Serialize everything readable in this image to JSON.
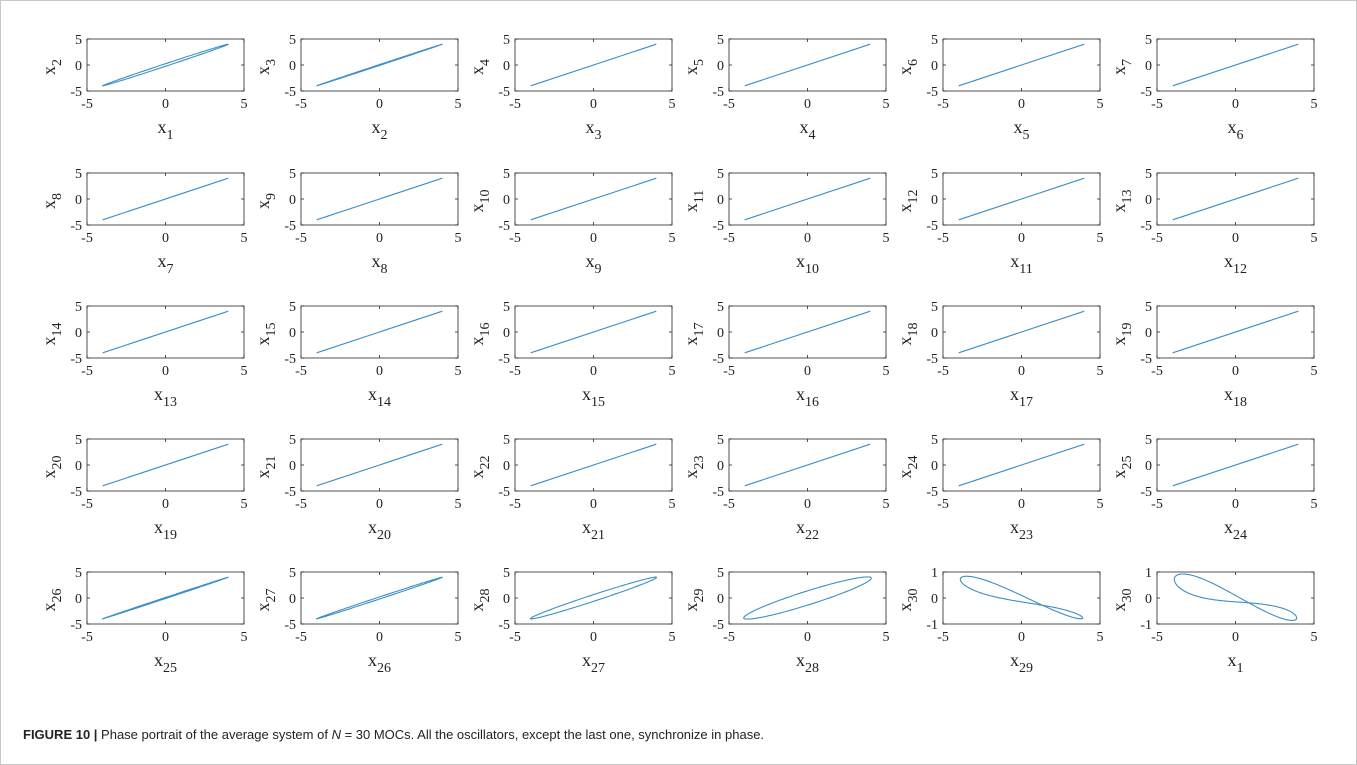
{
  "caption": {
    "label": "FIGURE 10 |",
    "text_before_n": " Phase portrait of the average system of ",
    "n_symbol": "N",
    "text_after_n": " = 30 MOCs. All the oscillators, except the last one, synchronize in phase."
  },
  "chart_data": {
    "type": "line",
    "layout": "grid of 30 phase-portrait subplots, 5 rows x 6 columns",
    "line_color": "#3d8fc4",
    "grid": false,
    "panels": [
      {
        "xlabel": "x_1",
        "ylabel": "x_2",
        "xlim": [
          -5,
          5
        ],
        "ylim": [
          -5,
          5
        ],
        "xticks": [
          "-5",
          "0",
          "5"
        ],
        "yticks": [
          "5",
          "0",
          "-5"
        ],
        "shape": "narrow_loop",
        "x_range": [
          -4,
          4
        ],
        "y_range": [
          -4,
          4
        ],
        "loop_width": 0.25
      },
      {
        "xlabel": "x_2",
        "ylabel": "x_3",
        "xlim": [
          -5,
          5
        ],
        "ylim": [
          -5,
          5
        ],
        "xticks": [
          "-5",
          "0",
          "5"
        ],
        "yticks": [
          "5",
          "0",
          "-5"
        ],
        "shape": "narrow_loop",
        "x_range": [
          -4,
          4
        ],
        "y_range": [
          -4,
          4
        ],
        "loop_width": 0.08
      },
      {
        "xlabel": "x_3",
        "ylabel": "x_4",
        "xlim": [
          -5,
          5
        ],
        "ylim": [
          -5,
          5
        ],
        "xticks": [
          "-5",
          "0",
          "5"
        ],
        "yticks": [
          "5",
          "0",
          "-5"
        ],
        "shape": "diagonal_line",
        "x_range": [
          -4,
          4
        ],
        "y_range": [
          -4,
          4
        ]
      },
      {
        "xlabel": "x_4",
        "ylabel": "x_5",
        "xlim": [
          -5,
          5
        ],
        "ylim": [
          -5,
          5
        ],
        "xticks": [
          "-5",
          "0",
          "5"
        ],
        "yticks": [
          "5",
          "0",
          "-5"
        ],
        "shape": "diagonal_line",
        "x_range": [
          -4,
          4
        ],
        "y_range": [
          -4,
          4
        ]
      },
      {
        "xlabel": "x_5",
        "ylabel": "x_6",
        "xlim": [
          -5,
          5
        ],
        "ylim": [
          -5,
          5
        ],
        "xticks": [
          "-5",
          "0",
          "5"
        ],
        "yticks": [
          "5",
          "0",
          "-5"
        ],
        "shape": "diagonal_line",
        "x_range": [
          -4,
          4
        ],
        "y_range": [
          -4,
          4
        ]
      },
      {
        "xlabel": "x_6",
        "ylabel": "x_7",
        "xlim": [
          -5,
          5
        ],
        "ylim": [
          -5,
          5
        ],
        "xticks": [
          "-5",
          "0",
          "5"
        ],
        "yticks": [
          "5",
          "0",
          "-5"
        ],
        "shape": "diagonal_line",
        "x_range": [
          -4,
          4
        ],
        "y_range": [
          -4,
          4
        ]
      },
      {
        "xlabel": "x_7",
        "ylabel": "x_8",
        "xlim": [
          -5,
          5
        ],
        "ylim": [
          -5,
          5
        ],
        "xticks": [
          "-5",
          "0",
          "5"
        ],
        "yticks": [
          "5",
          "0",
          "-5"
        ],
        "shape": "diagonal_line",
        "x_range": [
          -4,
          4
        ],
        "y_range": [
          -4,
          4
        ]
      },
      {
        "xlabel": "x_8",
        "ylabel": "x_9",
        "xlim": [
          -5,
          5
        ],
        "ylim": [
          -5,
          5
        ],
        "xticks": [
          "-5",
          "0",
          "5"
        ],
        "yticks": [
          "5",
          "0",
          "-5"
        ],
        "shape": "diagonal_line",
        "x_range": [
          -4,
          4
        ],
        "y_range": [
          -4,
          4
        ]
      },
      {
        "xlabel": "x_9",
        "ylabel": "x_10",
        "xlim": [
          -5,
          5
        ],
        "ylim": [
          -5,
          5
        ],
        "xticks": [
          "-5",
          "0",
          "5"
        ],
        "yticks": [
          "5",
          "0",
          "-5"
        ],
        "shape": "diagonal_line",
        "x_range": [
          -4,
          4
        ],
        "y_range": [
          -4,
          4
        ]
      },
      {
        "xlabel": "x_10",
        "ylabel": "x_11",
        "xlim": [
          -5,
          5
        ],
        "ylim": [
          -5,
          5
        ],
        "xticks": [
          "-5",
          "0",
          "5"
        ],
        "yticks": [
          "5",
          "0",
          "-5"
        ],
        "shape": "diagonal_line",
        "x_range": [
          -4,
          4
        ],
        "y_range": [
          -4,
          4
        ]
      },
      {
        "xlabel": "x_11",
        "ylabel": "x_12",
        "xlim": [
          -5,
          5
        ],
        "ylim": [
          -5,
          5
        ],
        "xticks": [
          "-5",
          "0",
          "5"
        ],
        "yticks": [
          "5",
          "0",
          "-5"
        ],
        "shape": "diagonal_line",
        "x_range": [
          -4,
          4
        ],
        "y_range": [
          -4,
          4
        ]
      },
      {
        "xlabel": "x_12",
        "ylabel": "x_13",
        "xlim": [
          -5,
          5
        ],
        "ylim": [
          -5,
          5
        ],
        "xticks": [
          "-5",
          "0",
          "5"
        ],
        "yticks": [
          "5",
          "0",
          "-5"
        ],
        "shape": "diagonal_line",
        "x_range": [
          -4,
          4
        ],
        "y_range": [
          -4,
          4
        ]
      },
      {
        "xlabel": "x_13",
        "ylabel": "x_14",
        "xlim": [
          -5,
          5
        ],
        "ylim": [
          -5,
          5
        ],
        "xticks": [
          "-5",
          "0",
          "5"
        ],
        "yticks": [
          "5",
          "0",
          "-5"
        ],
        "shape": "diagonal_line",
        "x_range": [
          -4,
          4
        ],
        "y_range": [
          -4,
          4
        ]
      },
      {
        "xlabel": "x_14",
        "ylabel": "x_15",
        "xlim": [
          -5,
          5
        ],
        "ylim": [
          -5,
          5
        ],
        "xticks": [
          "-5",
          "0",
          "5"
        ],
        "yticks": [
          "5",
          "0",
          "-5"
        ],
        "shape": "diagonal_line",
        "x_range": [
          -4,
          4
        ],
        "y_range": [
          -4,
          4
        ]
      },
      {
        "xlabel": "x_15",
        "ylabel": "x_16",
        "xlim": [
          -5,
          5
        ],
        "ylim": [
          -5,
          5
        ],
        "xticks": [
          "-5",
          "0",
          "5"
        ],
        "yticks": [
          "5",
          "0",
          "-5"
        ],
        "shape": "diagonal_line",
        "x_range": [
          -4,
          4
        ],
        "y_range": [
          -4,
          4
        ]
      },
      {
        "xlabel": "x_16",
        "ylabel": "x_17",
        "xlim": [
          -5,
          5
        ],
        "ylim": [
          -5,
          5
        ],
        "xticks": [
          "-5",
          "0",
          "5"
        ],
        "yticks": [
          "5",
          "0",
          "-5"
        ],
        "shape": "diagonal_line",
        "x_range": [
          -4,
          4
        ],
        "y_range": [
          -4,
          4
        ]
      },
      {
        "xlabel": "x_17",
        "ylabel": "x_18",
        "xlim": [
          -5,
          5
        ],
        "ylim": [
          -5,
          5
        ],
        "xticks": [
          "-5",
          "0",
          "5"
        ],
        "yticks": [
          "5",
          "0",
          "-5"
        ],
        "shape": "diagonal_line",
        "x_range": [
          -4,
          4
        ],
        "y_range": [
          -4,
          4
        ]
      },
      {
        "xlabel": "x_18",
        "ylabel": "x_19",
        "xlim": [
          -5,
          5
        ],
        "ylim": [
          -5,
          5
        ],
        "xticks": [
          "-5",
          "0",
          "5"
        ],
        "yticks": [
          "5",
          "0",
          "-5"
        ],
        "shape": "diagonal_line",
        "x_range": [
          -4,
          4
        ],
        "y_range": [
          -4,
          4
        ]
      },
      {
        "xlabel": "x_19",
        "ylabel": "x_20",
        "xlim": [
          -5,
          5
        ],
        "ylim": [
          -5,
          5
        ],
        "xticks": [
          "-5",
          "0",
          "5"
        ],
        "yticks": [
          "5",
          "0",
          "-5"
        ],
        "shape": "diagonal_line",
        "x_range": [
          -4,
          4
        ],
        "y_range": [
          -4,
          4
        ]
      },
      {
        "xlabel": "x_20",
        "ylabel": "x_21",
        "xlim": [
          -5,
          5
        ],
        "ylim": [
          -5,
          5
        ],
        "xticks": [
          "-5",
          "0",
          "5"
        ],
        "yticks": [
          "5",
          "0",
          "-5"
        ],
        "shape": "diagonal_line",
        "x_range": [
          -4,
          4
        ],
        "y_range": [
          -4,
          4
        ]
      },
      {
        "xlabel": "x_21",
        "ylabel": "x_22",
        "xlim": [
          -5,
          5
        ],
        "ylim": [
          -5,
          5
        ],
        "xticks": [
          "-5",
          "0",
          "5"
        ],
        "yticks": [
          "5",
          "0",
          "-5"
        ],
        "shape": "diagonal_line",
        "x_range": [
          -4,
          4
        ],
        "y_range": [
          -4,
          4
        ]
      },
      {
        "xlabel": "x_22",
        "ylabel": "x_23",
        "xlim": [
          -5,
          5
        ],
        "ylim": [
          -5,
          5
        ],
        "xticks": [
          "-5",
          "0",
          "5"
        ],
        "yticks": [
          "5",
          "0",
          "-5"
        ],
        "shape": "diagonal_line",
        "x_range": [
          -4,
          4
        ],
        "y_range": [
          -4,
          4
        ]
      },
      {
        "xlabel": "x_23",
        "ylabel": "x_24",
        "xlim": [
          -5,
          5
        ],
        "ylim": [
          -5,
          5
        ],
        "xticks": [
          "-5",
          "0",
          "5"
        ],
        "yticks": [
          "5",
          "0",
          "-5"
        ],
        "shape": "diagonal_line",
        "x_range": [
          -4,
          4
        ],
        "y_range": [
          -4,
          4
        ]
      },
      {
        "xlabel": "x_24",
        "ylabel": "x_25",
        "xlim": [
          -5,
          5
        ],
        "ylim": [
          -5,
          5
        ],
        "xticks": [
          "-5",
          "0",
          "5"
        ],
        "yticks": [
          "5",
          "0",
          "-5"
        ],
        "shape": "diagonal_line",
        "x_range": [
          -4,
          4
        ],
        "y_range": [
          -4,
          4
        ]
      },
      {
        "xlabel": "x_25",
        "ylabel": "x_26",
        "xlim": [
          -5,
          5
        ],
        "ylim": [
          -5,
          5
        ],
        "xticks": [
          "-5",
          "0",
          "5"
        ],
        "yticks": [
          "5",
          "0",
          "-5"
        ],
        "shape": "narrow_loop",
        "x_range": [
          -4,
          4
        ],
        "y_range": [
          -4,
          4
        ],
        "loop_width": 0.1
      },
      {
        "xlabel": "x_26",
        "ylabel": "x_27",
        "xlim": [
          -5,
          5
        ],
        "ylim": [
          -5,
          5
        ],
        "xticks": [
          "-5",
          "0",
          "5"
        ],
        "yticks": [
          "5",
          "0",
          "-5"
        ],
        "shape": "narrow_loop",
        "x_range": [
          -4,
          4
        ],
        "y_range": [
          -4,
          4
        ],
        "loop_width": 0.2
      },
      {
        "xlabel": "x_27",
        "ylabel": "x_28",
        "xlim": [
          -5,
          5
        ],
        "ylim": [
          -5,
          5
        ],
        "xticks": [
          "-5",
          "0",
          "5"
        ],
        "yticks": [
          "5",
          "0",
          "-5"
        ],
        "shape": "narrow_loop",
        "x_range": [
          -4,
          4
        ],
        "y_range": [
          -4,
          4
        ],
        "loop_width": 0.65
      },
      {
        "xlabel": "x_28",
        "ylabel": "x_29",
        "xlim": [
          -5,
          5
        ],
        "ylim": [
          -5,
          5
        ],
        "xticks": [
          "-5",
          "0",
          "5"
        ],
        "yticks": [
          "5",
          "0",
          "-5"
        ],
        "shape": "narrow_loop",
        "x_range": [
          -4,
          4
        ],
        "y_range": [
          -4,
          4
        ],
        "loop_width": 1.4
      },
      {
        "xlabel": "x_29",
        "ylabel": "x_30",
        "xlim": [
          -5,
          5
        ],
        "ylim": [
          -1,
          1
        ],
        "xticks": [
          "-5",
          "0",
          "5"
        ],
        "yticks": [
          "1",
          "0",
          "-1"
        ],
        "shape": "figure_eight",
        "x_range": [
          -3.9,
          3.9
        ],
        "y_range": [
          -0.9,
          0.85
        ]
      },
      {
        "xlabel": "x_1",
        "ylabel": "x_30",
        "xlim": [
          -5,
          5
        ],
        "ylim": [
          -1,
          1
        ],
        "xticks": [
          "-5",
          "0",
          "5"
        ],
        "yticks": [
          "1",
          "0",
          "-1"
        ],
        "shape": "figure_eight_crossed",
        "x_range": [
          -3.9,
          3.9
        ],
        "y_range": [
          -0.9,
          0.85
        ]
      }
    ]
  }
}
